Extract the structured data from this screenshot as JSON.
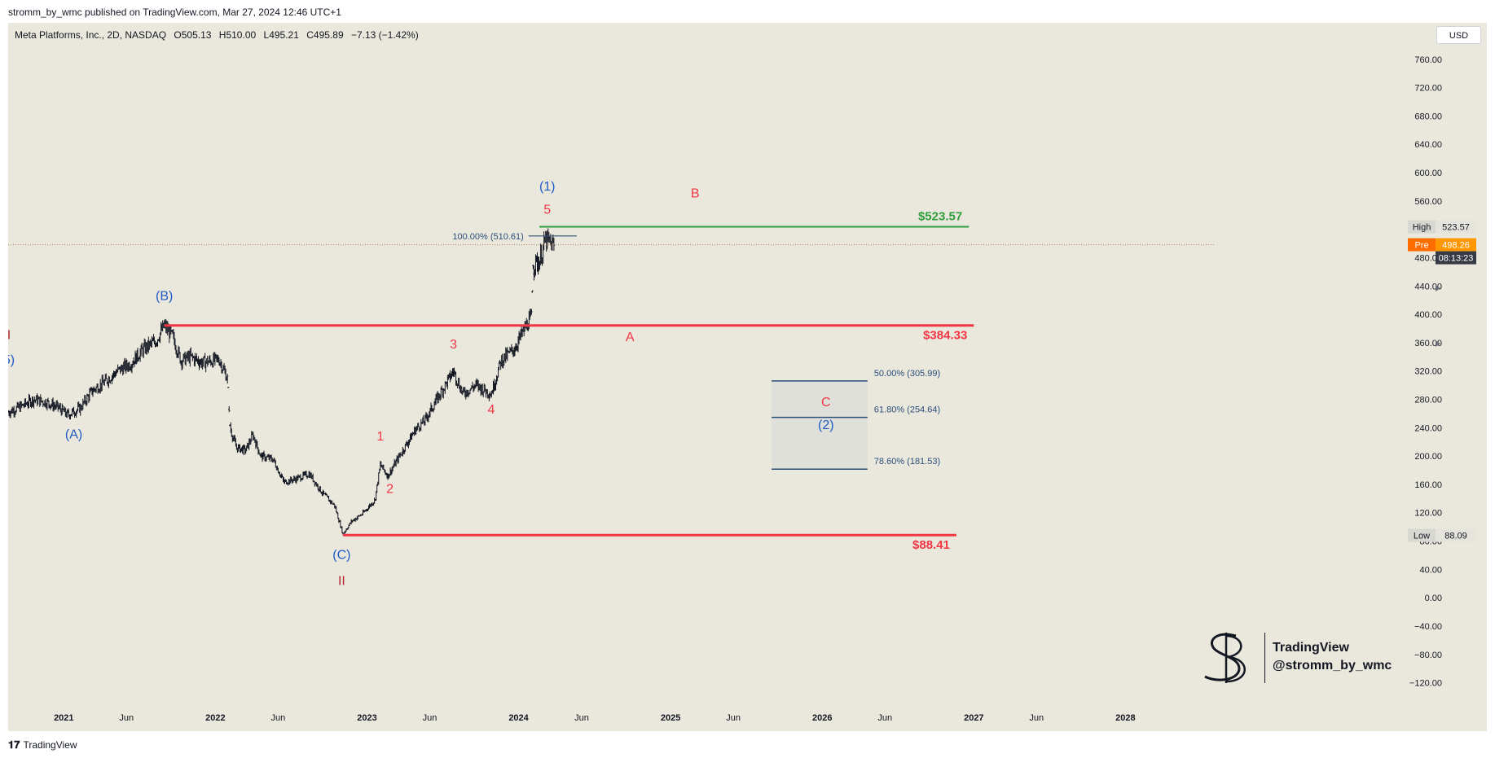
{
  "header": {
    "publisher": "stromm_by_wmc published on TradingView.com, Mar 27, 2024 12:46 UTC+1"
  },
  "symbol": {
    "name": "Meta Platforms, Inc., 2D, NASDAQ",
    "open": "O505.13",
    "high": "H510.00",
    "low": "L495.21",
    "close": "C495.89",
    "change": "−7.13 (−1.42%)"
  },
  "currency_button": "USD",
  "watermark": {
    "line1": "TradingView",
    "line2": "@stromm_by_wmc"
  },
  "footer": {
    "logo": "TradingView",
    "logo_mark": "𝟏𝟕"
  },
  "colors": {
    "background": "#eae7dc",
    "candle": "#131722",
    "red_level": "#f23645",
    "green_level": "#2e9e3a",
    "wave_blue": "#1e5bc6",
    "wave_red": "#f23645",
    "fib_line": "#2a4e7a",
    "fib_zone": "#dfe0da"
  },
  "chart_data": {
    "type": "candlestick",
    "y_axis": {
      "ticks": [
        -120,
        -80,
        -40,
        0,
        40,
        80,
        120,
        160,
        200,
        240,
        280,
        320,
        360,
        400,
        440,
        480,
        520,
        560,
        600,
        640,
        680,
        720,
        760
      ],
      "tick_labels": [
        "−120.00",
        "−80.00",
        "−40.00",
        "0.00",
        "40.00",
        "80.00",
        "120.00",
        "160.00",
        "200.00",
        "240.00",
        "280.00",
        "320.00",
        "360.00",
        "400.00",
        "440.00",
        "480.00",
        "520.00",
        "560.00",
        "600.00",
        "640.00",
        "680.00",
        "720.00",
        "760.00"
      ],
      "range": [
        -140,
        800
      ]
    },
    "x_axis": {
      "range": [
        "2020-08-20",
        "2028-08-01"
      ],
      "ticks": [
        {
          "date": "2021-01-01",
          "label": "2021",
          "bold": true
        },
        {
          "date": "2021-06-01",
          "label": "Jun",
          "bold": false
        },
        {
          "date": "2022-01-01",
          "label": "2022",
          "bold": true
        },
        {
          "date": "2022-06-01",
          "label": "Jun",
          "bold": false
        },
        {
          "date": "2023-01-01",
          "label": "2023",
          "bold": true
        },
        {
          "date": "2023-06-01",
          "label": "Jun",
          "bold": false
        },
        {
          "date": "2024-01-01",
          "label": "2024",
          "bold": true
        },
        {
          "date": "2024-06-01",
          "label": "Jun",
          "bold": false
        },
        {
          "date": "2025-01-01",
          "label": "2025",
          "bold": true
        },
        {
          "date": "2025-06-01",
          "label": "Jun",
          "bold": false
        },
        {
          "date": "2026-01-01",
          "label": "2026",
          "bold": true
        },
        {
          "date": "2026-06-01",
          "label": "Jun",
          "bold": false
        },
        {
          "date": "2027-01-01",
          "label": "2027",
          "bold": true
        },
        {
          "date": "2027-06-01",
          "label": "Jun",
          "bold": false
        },
        {
          "date": "2028-01-01",
          "label": "2028",
          "bold": true
        }
      ]
    },
    "price_path": [
      [
        "2020-08-20",
        262
      ],
      [
        "2020-09-20",
        270
      ],
      [
        "2020-10-20",
        280
      ],
      [
        "2020-11-20",
        276
      ],
      [
        "2020-12-20",
        268
      ],
      [
        "2021-01-10",
        258
      ],
      [
        "2021-02-10",
        268
      ],
      [
        "2021-03-10",
        292
      ],
      [
        "2021-04-10",
        305
      ],
      [
        "2021-05-10",
        320
      ],
      [
        "2021-06-10",
        330
      ],
      [
        "2021-07-10",
        350
      ],
      [
        "2021-08-10",
        362
      ],
      [
        "2021-08-31",
        384
      ],
      [
        "2021-09-20",
        368
      ],
      [
        "2021-10-10",
        335
      ],
      [
        "2021-11-01",
        340
      ],
      [
        "2021-12-01",
        332
      ],
      [
        "2022-01-10",
        336
      ],
      [
        "2022-01-31",
        308
      ],
      [
        "2022-02-04",
        242
      ],
      [
        "2022-02-20",
        212
      ],
      [
        "2022-03-15",
        208
      ],
      [
        "2022-04-01",
        230
      ],
      [
        "2022-04-20",
        200
      ],
      [
        "2022-05-20",
        195
      ],
      [
        "2022-06-15",
        163
      ],
      [
        "2022-07-15",
        168
      ],
      [
        "2022-08-15",
        175
      ],
      [
        "2022-09-15",
        148
      ],
      [
        "2022-10-15",
        130
      ],
      [
        "2022-11-04",
        90
      ],
      [
        "2022-11-25",
        108
      ],
      [
        "2022-12-20",
        118
      ],
      [
        "2023-01-20",
        138
      ],
      [
        "2023-02-02",
        188
      ],
      [
        "2023-02-20",
        172
      ],
      [
        "2023-03-20",
        200
      ],
      [
        "2023-04-28",
        238
      ],
      [
        "2023-05-20",
        250
      ],
      [
        "2023-06-20",
        282
      ],
      [
        "2023-07-28",
        320
      ],
      [
        "2023-08-20",
        288
      ],
      [
        "2023-09-20",
        300
      ],
      [
        "2023-10-27",
        288
      ],
      [
        "2023-11-20",
        335
      ],
      [
        "2023-12-20",
        350
      ],
      [
        "2024-01-20",
        385
      ],
      [
        "2024-02-01",
        396
      ],
      [
        "2024-02-05",
        470
      ],
      [
        "2024-02-20",
        475
      ],
      [
        "2024-03-06",
        505
      ],
      [
        "2024-03-27",
        496
      ]
    ],
    "horizontal_levels": [
      {
        "price": 523.57,
        "label": "$523.57",
        "from": "2024-02-20",
        "to": "2026-12-20",
        "color": "green"
      },
      {
        "price": 384.33,
        "label": "$384.33",
        "from": "2021-08-31",
        "to": "2027-01-01",
        "color": "red"
      },
      {
        "price": 88.41,
        "label": "$88.41",
        "from": "2022-11-04",
        "to": "2026-11-20",
        "color": "red"
      }
    ],
    "fib_retracement": {
      "from": "2025-09-01",
      "to": "2026-04-20",
      "levels": [
        {
          "label": "50.00% (305.99)",
          "price": 305.99
        },
        {
          "label": "61.80% (254.64)",
          "price": 254.64
        },
        {
          "label": "78.60% (181.53)",
          "price": 181.53
        }
      ]
    },
    "fib_top": {
      "label": "100.00% (510.61)",
      "price": 510.61,
      "from": "2024-01-25",
      "to": "2024-05-20"
    },
    "wave_labels": [
      {
        "text": "I",
        "date": "2020-08-22",
        "price": 365,
        "color": "red_dark"
      },
      {
        "text": "5)",
        "date": "2020-08-22",
        "price": 330,
        "color": "blue"
      },
      {
        "text": "(A)",
        "date": "2021-01-25",
        "price": 225,
        "color": "blue"
      },
      {
        "text": "(B)",
        "date": "2021-08-31",
        "price": 420,
        "color": "blue"
      },
      {
        "text": "(C)",
        "date": "2022-11-01",
        "price": 55,
        "color": "blue"
      },
      {
        "text": "II",
        "date": "2022-11-01",
        "price": 18,
        "color": "red_dark"
      },
      {
        "text": "1",
        "date": "2023-02-02",
        "price": 222,
        "color": "red"
      },
      {
        "text": "2",
        "date": "2023-02-25",
        "price": 148,
        "color": "red"
      },
      {
        "text": "3",
        "date": "2023-07-28",
        "price": 352,
        "color": "red"
      },
      {
        "text": "4",
        "date": "2023-10-27",
        "price": 260,
        "color": "red"
      },
      {
        "text": "(1)",
        "date": "2024-03-10",
        "price": 575,
        "color": "blue"
      },
      {
        "text": "5",
        "date": "2024-03-10",
        "price": 542,
        "color": "red"
      },
      {
        "text": "B",
        "date": "2025-03-01",
        "price": 565,
        "color": "red"
      },
      {
        "text": "A",
        "date": "2024-09-25",
        "price": 362,
        "color": "red"
      },
      {
        "text": "C",
        "date": "2026-01-10",
        "price": 270,
        "color": "red"
      },
      {
        "text": "(2)",
        "date": "2026-01-10",
        "price": 238,
        "color": "blue"
      }
    ],
    "axis_badges": [
      {
        "title": "High",
        "value": "523.57",
        "price": 523.57,
        "style": "gray"
      },
      {
        "title": "Pre",
        "value": "498.26",
        "price": 498.26,
        "style": "orange"
      },
      {
        "title": "",
        "value": "08:13:23",
        "price": 498.26,
        "style": "dark"
      },
      {
        "title": "Low",
        "value": "88.09",
        "price": 88.09,
        "style": "gray"
      }
    ],
    "current_price": 498.26
  }
}
